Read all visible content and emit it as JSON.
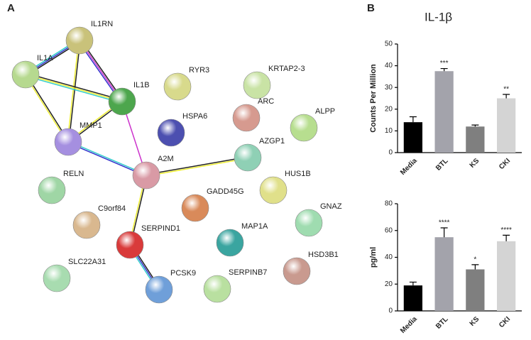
{
  "panels": [
    "A",
    "B"
  ],
  "network": {
    "nodes": [
      "IL1RN",
      "IL1A",
      "IL1B",
      "RYR3",
      "KRTAP2-3",
      "MMP1",
      "HSPA6",
      "ARC",
      "ALPP",
      "AZGP1",
      "A2M",
      "RELN",
      "HUS1B",
      "GADD45G",
      "C9orf84",
      "GNAZ",
      "SERPIND1",
      "MAP1A",
      "HSD3B1",
      "SLC22A31",
      "PCSK9",
      "SERPINB7"
    ]
  },
  "chart_data": [
    {
      "type": "bar",
      "title": "IL-1β",
      "ylabel": "Counts Per Million",
      "categories": [
        "Media",
        "BTL",
        "KS",
        "CKI"
      ],
      "values": [
        14,
        37.5,
        12,
        25
      ],
      "errors": [
        2.5,
        1.2,
        0.7,
        1.8
      ],
      "significance": [
        null,
        "***",
        null,
        "**"
      ],
      "colors": [
        "#000000",
        "#a3a3ab",
        "#7f7f7f",
        "#d4d4d4"
      ],
      "ylim": [
        0,
        50
      ],
      "yticks": [
        0,
        10,
        20,
        30,
        40,
        50
      ]
    },
    {
      "type": "bar",
      "ylabel": "pg/ml",
      "categories": [
        "Media",
        "BTL",
        "KS",
        "CKI"
      ],
      "values": [
        19,
        55,
        31,
        52
      ],
      "errors": [
        2.5,
        7,
        3.5,
        4.5
      ],
      "significance": [
        null,
        "****",
        "*",
        "****"
      ],
      "colors": [
        "#000000",
        "#a3a3ab",
        "#7f7f7f",
        "#d4d4d4"
      ],
      "ylim": [
        0,
        80
      ],
      "yticks": [
        0,
        20,
        40,
        60,
        80
      ]
    }
  ]
}
